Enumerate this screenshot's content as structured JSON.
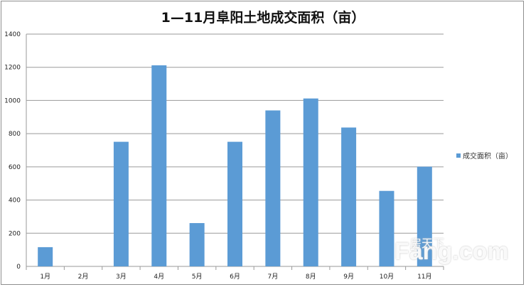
{
  "chart_data": {
    "type": "bar",
    "title": "1—11月阜阳土地成交面积（亩）",
    "categories": [
      "1月",
      "2月",
      "3月",
      "4月",
      "5月",
      "6月",
      "7月",
      "8月",
      "9月",
      "10月",
      "11月"
    ],
    "series": [
      {
        "name": "成交面积（亩）",
        "values": [
          116,
          0,
          751,
          1212,
          261,
          751,
          940,
          1012,
          837,
          455,
          601
        ]
      }
    ],
    "ylim": [
      0,
      1400
    ],
    "yticks": [
      0,
      200,
      400,
      600,
      800,
      1000,
      1200,
      1400
    ],
    "grid": true,
    "legend": "right",
    "color": "#5b9bd5"
  },
  "watermark": {
    "text": "房天下 Fang.com"
  }
}
